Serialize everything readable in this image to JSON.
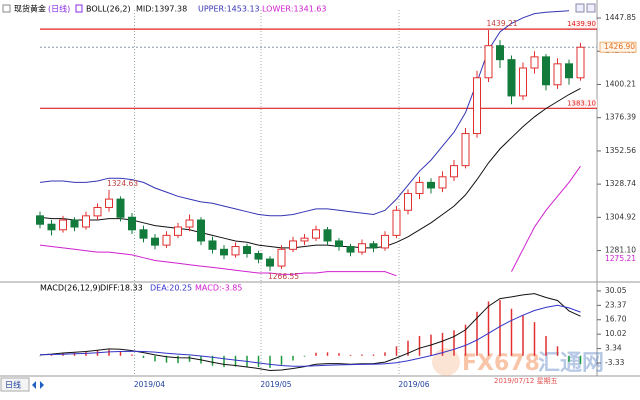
{
  "header": {
    "symbol": "现货黄金",
    "period": "(日线)",
    "boll": "BOLL(26,2)",
    "mid": "MID:1397.38",
    "upper": "UPPER:1453.13",
    "lower": "LOWER:1341.63"
  },
  "chart_data": [
    {
      "type": "candlestick",
      "categories": [
        null,
        null,
        null,
        null,
        null,
        null,
        null,
        null,
        null,
        "2019/04",
        null,
        null,
        null,
        null,
        null,
        null,
        null,
        null,
        null,
        null,
        "2019/05",
        null,
        null,
        null,
        null,
        null,
        null,
        null,
        null,
        null,
        null,
        null,
        "2019/06",
        null,
        null,
        null,
        null,
        null,
        null,
        null,
        null,
        null,
        null,
        null,
        null,
        null,
        null,
        null
      ],
      "open": [
        1306,
        1300,
        1296,
        1303,
        1298,
        1306,
        1312,
        1318,
        1305,
        1296,
        1290,
        1285,
        1292,
        1298,
        1303,
        1288,
        1282,
        1278,
        1284,
        1279,
        1275,
        1270,
        1282,
        1288,
        1290,
        1296,
        1288,
        1284,
        1280,
        1286,
        1283,
        1292,
        1310,
        1322,
        1330,
        1326,
        1334,
        1342,
        1365,
        1405,
        1428,
        1418,
        1392,
        1412,
        1420,
        1400,
        1415,
        1405
      ],
      "high": [
        1309,
        1303,
        1306,
        1305,
        1309,
        1315,
        1324.63,
        1320,
        1308,
        1299,
        1293,
        1295,
        1301,
        1307,
        1305,
        1291,
        1285,
        1287,
        1286,
        1281,
        1277,
        1285,
        1291,
        1293,
        1299,
        1298,
        1290,
        1286,
        1289,
        1288,
        1295,
        1313,
        1325,
        1334,
        1333,
        1338,
        1346,
        1369,
        1410,
        1439.21,
        1432,
        1421,
        1416,
        1424,
        1422,
        1419,
        1418,
        1430
      ],
      "low": [
        1297,
        1292,
        1294,
        1295,
        1296,
        1303,
        1309,
        1302,
        1293,
        1287,
        1282,
        1283,
        1290,
        1295,
        1285,
        1279,
        1275,
        1276,
        1276,
        1272,
        1266.55,
        1268,
        1280,
        1285,
        1288,
        1285,
        1281,
        1277,
        1278,
        1280,
        1281,
        1290,
        1307,
        1318,
        1322,
        1323,
        1331,
        1340,
        1362,
        1402,
        1412,
        1386,
        1389,
        1408,
        1396,
        1397,
        1400,
        1403
      ],
      "close": [
        1300,
        1296,
        1303,
        1298,
        1306,
        1312,
        1318,
        1305,
        1296,
        1290,
        1285,
        1292,
        1298,
        1303,
        1288,
        1282,
        1278,
        1284,
        1279,
        1275,
        1270,
        1282,
        1288,
        1290,
        1296,
        1288,
        1284,
        1280,
        1286,
        1283,
        1292,
        1310,
        1322,
        1330,
        1326,
        1334,
        1342,
        1365,
        1405,
        1428,
        1418,
        1392,
        1412,
        1420,
        1400,
        1415,
        1405,
        1426.9
      ],
      "up_color": "#e03030",
      "down_color": "#127a3a",
      "series": [
        {
          "color": "#3434b4",
          "values": [
            1330,
            1331,
            1331,
            1330,
            1330,
            1331,
            1333,
            1333,
            1332,
            1330,
            1326,
            1323,
            1320,
            1318,
            1316,
            1315,
            1313,
            1311,
            1309,
            1307,
            1306,
            1306,
            1307,
            1309,
            1311,
            1311,
            1310,
            1309,
            1308,
            1307,
            1310,
            1318,
            1328,
            1338,
            1346,
            1356,
            1366,
            1380,
            1402,
            1425,
            1438,
            1444,
            1448,
            1451,
            1452,
            1452.5,
            1453.13,
            null
          ]
        },
        {
          "color": "#111111",
          "values": [
            1305,
            1304,
            1304,
            1303,
            1303,
            1303,
            1304,
            1304,
            1303,
            1301,
            1299,
            1298,
            1297,
            1296,
            1294,
            1292,
            1290,
            1288,
            1287,
            1285,
            1284,
            1283,
            1283,
            1284,
            1285,
            1285,
            1284,
            1284,
            1283,
            1283,
            1284,
            1287,
            1291,
            1296,
            1301,
            1307,
            1313,
            1321,
            1332,
            1344,
            1354,
            1362,
            1370,
            1377,
            1383,
            1388,
            1393,
            1397.38
          ]
        },
        {
          "color": "#d020d0",
          "values": [
            1285,
            1284,
            1283,
            1282,
            1281,
            1280,
            1280,
            1279,
            1278,
            1276,
            1274,
            1273,
            1272,
            1271,
            1270,
            1269,
            1268,
            1267,
            1266,
            1265,
            1265,
            1264,
            1264,
            1265,
            1265,
            1266,
            1266,
            1266,
            1266,
            1266,
            1266,
            1263,
            null,
            null,
            null,
            null,
            null,
            null,
            null,
            null,
            null,
            1266,
            1282,
            1298,
            1310,
            1320,
            1330,
            1341.63
          ]
        }
      ],
      "ylim": [
        1260,
        1453.6
      ],
      "yticks": [
        1447.85,
        1424.03,
        1400.21,
        1376.39,
        1352.56,
        1328.74,
        1304.92,
        {
          "value": 1281.1,
          "label": "1281.10"
        }
      ],
      "reference_lines": [
        {
          "value": 1439.9,
          "label": "1439.90"
        },
        {
          "value": 1383.1,
          "label": "1383.10"
        }
      ],
      "reference_color": "#e02020",
      "last_price": {
        "value": 1426.9,
        "label": "1426.90"
      },
      "lower_marker": 1275.21,
      "extremes": [
        1439.21,
        1324.63,
        1266.55
      ]
    },
    {
      "type": "macd",
      "title": "MACD(26,12,9)",
      "diff_label": "DIFF:18.33",
      "dea_label": "DEA:20.25",
      "macd_label": "MACD:-3.85",
      "series": [
        {
          "color": "#111111",
          "values": [
            0.4,
            0.8,
            1.3,
            1.6,
            2.0,
            2.6,
            3.2,
            3.0,
            2.4,
            1.5,
            0.4,
            -0.4,
            -0.9,
            -1.0,
            -1.9,
            -3.0,
            -4.0,
            -4.5,
            -5.2,
            -5.9,
            -6.8,
            -6.6,
            -5.9,
            -5.0,
            -3.9,
            -3.6,
            -3.6,
            -3.9,
            -3.7,
            -3.6,
            -2.9,
            -1.0,
            1.2,
            3.5,
            5.0,
            6.8,
            8.9,
            12.0,
            17.5,
            23.0,
            26.5,
            27.3,
            28.2,
            28.8,
            27.0,
            25.6,
            20.8,
            18.33
          ]
        },
        {
          "color": "#3434c8",
          "values": [
            0.5,
            0.6,
            0.7,
            0.9,
            1.1,
            1.4,
            1.8,
            2.0,
            2.1,
            2.0,
            1.7,
            1.2,
            0.8,
            0.4,
            -0.1,
            -0.7,
            -1.4,
            -2.0,
            -2.6,
            -3.3,
            -4.0,
            -4.5,
            -4.8,
            -4.8,
            -4.6,
            -4.4,
            -4.2,
            -4.1,
            -4.0,
            -3.9,
            -3.7,
            -3.2,
            -2.3,
            -1.1,
            0.1,
            1.5,
            3.0,
            4.8,
            7.3,
            10.4,
            13.6,
            16.4,
            18.8,
            21.0,
            22.4,
            23.4,
            22.2,
            20.25
          ]
        }
      ],
      "histogram": {
        "up_color": "#e03030",
        "down_color": "#1a9a3a",
        "values": [
          -0.2,
          0.4,
          1.2,
          1.4,
          1.8,
          2.4,
          2.8,
          2.0,
          0.6,
          -1.0,
          -2.6,
          -3.2,
          -3.4,
          -2.8,
          -3.6,
          -4.6,
          -5.2,
          -5.0,
          -5.2,
          -5.2,
          -5.6,
          -4.2,
          -2.2,
          -0.4,
          1.4,
          1.6,
          1.2,
          0.4,
          0.6,
          0.6,
          1.6,
          4.4,
          7.0,
          9.2,
          9.8,
          10.6,
          11.8,
          14.4,
          20.4,
          25.2,
          25.8,
          21.8,
          18.8,
          15.6,
          9.2,
          4.4,
          -2.8,
          -3.85
        ]
      },
      "ylim": [
        -8.9,
        32.8
      ],
      "yticks": [
        30.05,
        23.37,
        {
          "value": 16.7,
          "label": "16.70"
        },
        10.02,
        3.34,
        -3.33
      ]
    }
  ],
  "footer": {
    "period_tab": "日线",
    "watermark_brand": "FX678",
    "watermark_site": "汇通网",
    "date": "2019/07/12 星期五"
  }
}
